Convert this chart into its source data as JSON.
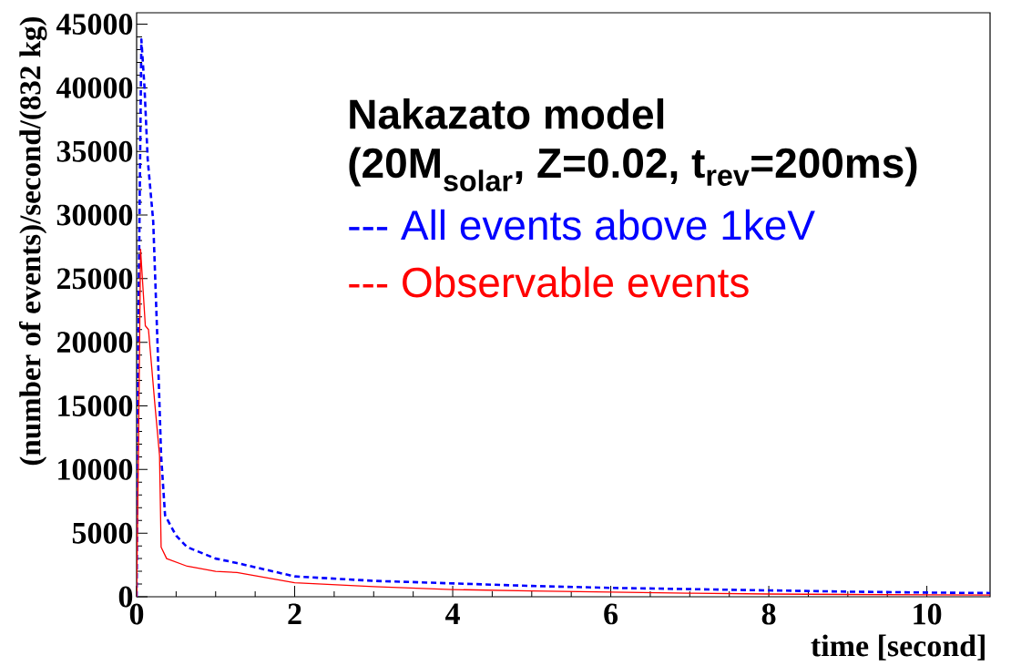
{
  "chart_data": {
    "type": "line",
    "xlabel": "time [second]",
    "ylabel": "(number of events)/second/(832 kg)",
    "annotations": [
      "Nakazato model",
      "(20M$_{solar}$, Z=0.02, t$_{rev}$=200ms)"
    ],
    "xlim": [
      0,
      10.8
    ],
    "ylim": [
      0,
      45900
    ],
    "xticks": [
      0,
      2,
      4,
      6,
      8,
      10
    ],
    "yticks": [
      0,
      5000,
      10000,
      15000,
      20000,
      25000,
      30000,
      35000,
      40000,
      45000
    ],
    "legend": "top",
    "marker": "none",
    "series": [
      {
        "name": "--- All events above 1keV",
        "color": "#0000ff",
        "line_style": "dashed",
        "x": [
          0,
          0.02,
          0.06,
          0.1,
          0.14,
          0.21,
          0.27,
          0.31,
          0.36,
          0.5,
          0.64,
          1,
          1.27,
          2,
          3,
          4,
          5,
          6,
          7,
          8,
          9,
          10,
          10.8
        ],
        "values": [
          0,
          20000,
          43800,
          40000,
          34400,
          29500,
          18900,
          11100,
          6400,
          4800,
          3900,
          3000,
          2650,
          1600,
          1250,
          1050,
          850,
          700,
          600,
          500,
          400,
          330,
          290
        ]
      },
      {
        "name": "--- Observable events",
        "color": "#ff0000",
        "line_style": "solid",
        "x": [
          0,
          0.02,
          0.05,
          0.11,
          0.15,
          0.23,
          0.29,
          0.31,
          0.38,
          0.64,
          1,
          1.27,
          2,
          3,
          4,
          5,
          6,
          7,
          8,
          9,
          10,
          10.8
        ],
        "values": [
          0,
          10000,
          27300,
          21300,
          21000,
          15200,
          11100,
          3900,
          3000,
          2400,
          2000,
          1900,
          1100,
          800,
          570,
          450,
          360,
          280,
          215,
          180,
          150,
          140
        ]
      }
    ]
  }
}
